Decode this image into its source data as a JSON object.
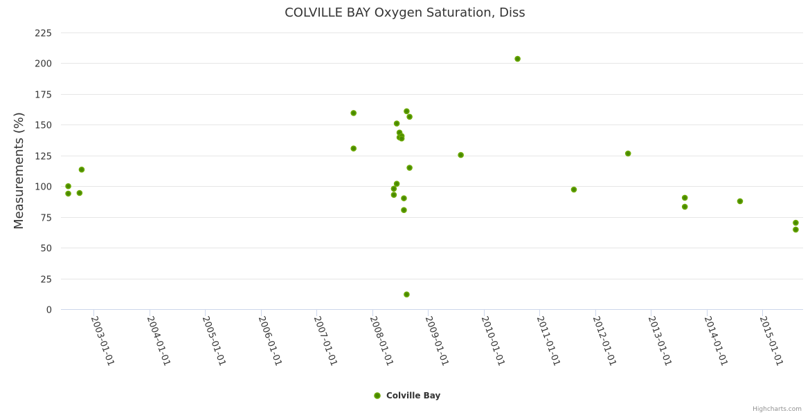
{
  "chart_data": {
    "type": "scatter",
    "title": "COLVILLE BAY Oxygen Saturation, Diss",
    "xlabel": "",
    "ylabel": "Measurements (%)",
    "ylim": [
      0,
      225
    ],
    "yticks": [
      0,
      25,
      50,
      75,
      100,
      125,
      150,
      175,
      200,
      225
    ],
    "xlim": [
      "2002-06-01",
      "2015-09-25"
    ],
    "xticks": [
      "2003-01-01",
      "2004-01-01",
      "2005-01-01",
      "2006-01-01",
      "2007-01-01",
      "2008-01-01",
      "2009-01-01",
      "2010-01-01",
      "2011-01-01",
      "2012-01-01",
      "2013-01-01",
      "2014-01-01",
      "2015-01-01"
    ],
    "grid": true,
    "legend_position": "bottom-center",
    "series": [
      {
        "name": "Colville Bay",
        "color": "#6aa800",
        "points": [
          {
            "x": "2002-07-19",
            "y": 100
          },
          {
            "x": "2002-07-19",
            "y": 94
          },
          {
            "x": "2002-10-01",
            "y": 94.5
          },
          {
            "x": "2002-10-15",
            "y": 113.5
          },
          {
            "x": "2007-09-01",
            "y": 159.5
          },
          {
            "x": "2007-09-01",
            "y": 130.7
          },
          {
            "x": "2008-05-22",
            "y": 98
          },
          {
            "x": "2008-05-22",
            "y": 93
          },
          {
            "x": "2008-06-10",
            "y": 151
          },
          {
            "x": "2008-06-10",
            "y": 102
          },
          {
            "x": "2008-06-28",
            "y": 143.6
          },
          {
            "x": "2008-06-28",
            "y": 139.7
          },
          {
            "x": "2008-07-12",
            "y": 140.8
          },
          {
            "x": "2008-07-12",
            "y": 138.8
          },
          {
            "x": "2008-07-27",
            "y": 90.2
          },
          {
            "x": "2008-07-27",
            "y": 80.6
          },
          {
            "x": "2008-08-14",
            "y": 161
          },
          {
            "x": "2008-08-14",
            "y": 12
          },
          {
            "x": "2008-09-02",
            "y": 156.5
          },
          {
            "x": "2008-09-02",
            "y": 115
          },
          {
            "x": "2009-08-04",
            "y": 125.4
          },
          {
            "x": "2010-08-11",
            "y": 203.6
          },
          {
            "x": "2011-08-15",
            "y": 97.3
          },
          {
            "x": "2012-08-04",
            "y": 126.6
          },
          {
            "x": "2013-08-11",
            "y": 90.6
          },
          {
            "x": "2013-08-11",
            "y": 83.3
          },
          {
            "x": "2014-08-08",
            "y": 87.8
          },
          {
            "x": "2015-08-08",
            "y": 70.3
          },
          {
            "x": "2015-08-08",
            "y": 64.7
          }
        ]
      }
    ],
    "credits": "Highcharts.com"
  }
}
